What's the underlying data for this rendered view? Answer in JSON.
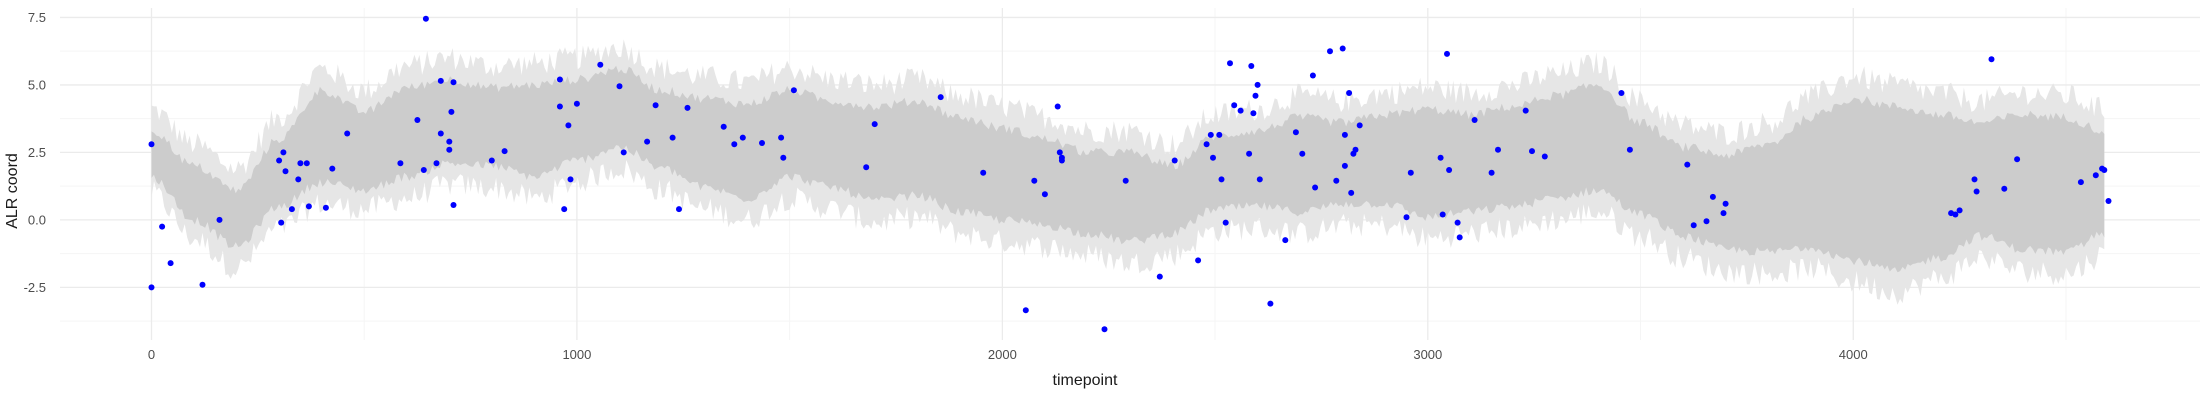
{
  "chart_data": {
    "type": "scatter",
    "title": "",
    "xlabel": "timepoint",
    "ylabel": "ALR coord",
    "xlim": [
      -215,
      4815
    ],
    "ylim": [
      -4.45,
      7.85
    ],
    "x_ticks": [
      0,
      1000,
      2000,
      3000,
      4000
    ],
    "x_tick_labels": [
      "0",
      "1000",
      "2000",
      "3000",
      "4000"
    ],
    "y_ticks": [
      -2.5,
      0.0,
      2.5,
      5.0,
      7.5
    ],
    "y_tick_labels": [
      "-2.5",
      "0.0",
      "2.5",
      "5.0",
      "7.5"
    ],
    "grid": true,
    "legend": "none",
    "colors": {
      "points": "#0000ff",
      "band_inner": "#cccccc",
      "band_outer": "#e6e6e6",
      "grid_major": "#ebebeb",
      "grid_minor": "#f5f5f5",
      "background": "#ffffff"
    },
    "band": {
      "x_start": 0,
      "x_end": 4590,
      "description_series": "posterior_interval",
      "x": [
        0,
        100,
        200,
        300,
        400,
        500,
        600,
        700,
        800,
        900,
        1000,
        1100,
        1200,
        1300,
        1400,
        1500,
        1600,
        1700,
        1800,
        1900,
        2000,
        2100,
        2200,
        2300,
        2400,
        2500,
        2600,
        2700,
        2800,
        2900,
        3000,
        3100,
        3200,
        3300,
        3400,
        3500,
        3600,
        3700,
        3800,
        3900,
        4000,
        4100,
        4200,
        4300,
        4400,
        4500,
        4590
      ],
      "inner_lower": [
        1.6,
        0.0,
        -1.0,
        0.5,
        1.4,
        1.1,
        1.6,
        2.1,
        2.0,
        1.6,
        2.2,
        2.7,
        1.9,
        1.2,
        0.8,
        1.6,
        1.2,
        0.7,
        0.9,
        0.3,
        0.0,
        -0.2,
        -0.5,
        -0.8,
        -0.5,
        0.4,
        0.5,
        0.3,
        0.6,
        0.6,
        0.1,
        0.3,
        0.5,
        0.8,
        1.1,
        0.2,
        -0.6,
        -1.1,
        -1.2,
        -1.0,
        -1.5,
        -1.9,
        -1.4,
        -0.6,
        -1.1,
        -1.2,
        -0.5
      ],
      "inner_upper": [
        3.3,
        2.0,
        1.1,
        3.0,
        4.8,
        4.0,
        4.9,
        5.2,
        4.9,
        5.0,
        5.2,
        5.6,
        4.8,
        4.5,
        4.3,
        4.8,
        4.4,
        4.2,
        4.4,
        3.8,
        3.4,
        3.0,
        2.5,
        2.5,
        2.0,
        3.1,
        3.3,
        3.8,
        3.6,
        3.9,
        4.1,
        3.9,
        4.2,
        4.6,
        5.0,
        3.6,
        2.7,
        2.4,
        2.8,
        3.8,
        4.5,
        4.2,
        3.9,
        3.6,
        3.9,
        3.8,
        3.3
      ],
      "outer_lower": [
        1.0,
        -0.7,
        -1.8,
        -0.3,
        0.6,
        0.4,
        0.8,
        1.3,
        1.2,
        0.8,
        1.4,
        1.9,
        1.1,
        0.4,
        0.0,
        0.8,
        0.4,
        -0.1,
        0.1,
        -0.5,
        -0.8,
        -1.0,
        -1.3,
        -1.6,
        -1.3,
        -0.4,
        -0.3,
        -0.5,
        -0.2,
        -0.2,
        -0.7,
        -0.5,
        -0.3,
        0.0,
        0.3,
        -0.6,
        -1.4,
        -1.9,
        -2.0,
        -1.8,
        -2.3,
        -2.7,
        -2.2,
        -1.4,
        -1.9,
        -2.0,
        -1.3
      ],
      "outer_upper": [
        4.1,
        2.8,
        1.9,
        3.8,
        5.6,
        4.8,
        5.7,
        6.0,
        5.7,
        5.8,
        6.0,
        6.4,
        5.6,
        5.3,
        5.1,
        5.6,
        5.2,
        5.0,
        5.2,
        4.6,
        4.2,
        3.8,
        3.3,
        3.3,
        2.8,
        3.9,
        4.1,
        4.6,
        4.4,
        4.7,
        4.9,
        4.7,
        5.0,
        5.4,
        5.8,
        4.4,
        3.5,
        3.2,
        3.6,
        4.6,
        5.3,
        5.0,
        4.7,
        4.4,
        4.7,
        4.6,
        4.1
      ]
    },
    "series": [
      {
        "points": [
          [
            0,
            2.8
          ],
          [
            0,
            -2.5
          ],
          [
            25,
            -0.25
          ],
          [
            45,
            -1.6
          ],
          [
            120,
            -2.4
          ],
          [
            160,
            0.0
          ],
          [
            300,
            2.2
          ],
          [
            305,
            -0.1
          ],
          [
            310,
            2.5
          ],
          [
            315,
            1.8
          ],
          [
            330,
            0.4
          ],
          [
            345,
            1.5
          ],
          [
            350,
            2.1
          ],
          [
            365,
            2.1
          ],
          [
            370,
            0.5
          ],
          [
            410,
            0.45
          ],
          [
            425,
            1.9
          ],
          [
            460,
            3.2
          ],
          [
            585,
            2.1
          ],
          [
            625,
            3.7
          ],
          [
            640,
            1.85
          ],
          [
            645,
            7.45
          ],
          [
            670,
            2.1
          ],
          [
            680,
            3.2
          ],
          [
            680,
            5.15
          ],
          [
            700,
            2.9
          ],
          [
            700,
            2.6
          ],
          [
            705,
            4.0
          ],
          [
            710,
            5.1
          ],
          [
            710,
            0.55
          ],
          [
            800,
            2.2
          ],
          [
            830,
            2.55
          ],
          [
            960,
            5.2
          ],
          [
            960,
            4.2
          ],
          [
            970,
            0.4
          ],
          [
            980,
            3.5
          ],
          [
            985,
            1.5
          ],
          [
            1000,
            4.3
          ],
          [
            1055,
            5.75
          ],
          [
            1100,
            4.95
          ],
          [
            1110,
            2.5
          ],
          [
            1165,
            2.9
          ],
          [
            1185,
            4.25
          ],
          [
            1225,
            3.05
          ],
          [
            1240,
            0.4
          ],
          [
            1260,
            4.15
          ],
          [
            1345,
            3.45
          ],
          [
            1370,
            2.8
          ],
          [
            1390,
            3.05
          ],
          [
            1435,
            2.85
          ],
          [
            1480,
            3.05
          ],
          [
            1485,
            2.3
          ],
          [
            1510,
            4.8
          ],
          [
            1680,
            1.95
          ],
          [
            1700,
            3.55
          ],
          [
            1855,
            4.55
          ],
          [
            1955,
            1.75
          ],
          [
            2055,
            -3.35
          ],
          [
            2075,
            1.45
          ],
          [
            2100,
            0.95
          ],
          [
            2130,
            4.2
          ],
          [
            2135,
            2.5
          ],
          [
            2140,
            2.3
          ],
          [
            2140,
            2.2
          ],
          [
            2240,
            -4.05
          ],
          [
            2290,
            1.45
          ],
          [
            2370,
            -2.1
          ],
          [
            2405,
            2.2
          ],
          [
            2460,
            -1.5
          ],
          [
            2480,
            2.8
          ],
          [
            2490,
            3.15
          ],
          [
            2495,
            2.3
          ],
          [
            2510,
            3.15
          ],
          [
            2515,
            1.5
          ],
          [
            2525,
            -0.1
          ],
          [
            2535,
            5.8
          ],
          [
            2545,
            4.25
          ],
          [
            2560,
            4.05
          ],
          [
            2580,
            2.45
          ],
          [
            2585,
            5.7
          ],
          [
            2590,
            3.95
          ],
          [
            2595,
            4.6
          ],
          [
            2600,
            5.0
          ],
          [
            2605,
            1.5
          ],
          [
            2630,
            -3.1
          ],
          [
            2665,
            -0.75
          ],
          [
            2690,
            3.25
          ],
          [
            2705,
            2.45
          ],
          [
            2730,
            5.35
          ],
          [
            2735,
            1.2
          ],
          [
            2770,
            6.25
          ],
          [
            2785,
            1.45
          ],
          [
            2800,
            6.35
          ],
          [
            2805,
            2.0
          ],
          [
            2805,
            3.15
          ],
          [
            2815,
            4.7
          ],
          [
            2820,
            1.0
          ],
          [
            2825,
            2.45
          ],
          [
            2830,
            2.6
          ],
          [
            2840,
            3.5
          ],
          [
            2950,
            0.1
          ],
          [
            2960,
            1.75
          ],
          [
            3030,
            2.3
          ],
          [
            3035,
            0.2
          ],
          [
            3045,
            6.15
          ],
          [
            3050,
            1.85
          ],
          [
            3070,
            -0.1
          ],
          [
            3075,
            -0.65
          ],
          [
            3110,
            3.7
          ],
          [
            3150,
            1.75
          ],
          [
            3165,
            2.6
          ],
          [
            3230,
            4.05
          ],
          [
            3245,
            2.55
          ],
          [
            3275,
            2.35
          ],
          [
            3455,
            4.7
          ],
          [
            3475,
            2.6
          ],
          [
            3610,
            2.05
          ],
          [
            3625,
            -0.2
          ],
          [
            3655,
            -0.05
          ],
          [
            3670,
            0.85
          ],
          [
            3695,
            0.25
          ],
          [
            3700,
            0.6
          ],
          [
            4230,
            0.25
          ],
          [
            4240,
            0.2
          ],
          [
            4250,
            0.35
          ],
          [
            4285,
            1.5
          ],
          [
            4290,
            1.05
          ],
          [
            4325,
            5.95
          ],
          [
            4355,
            1.15
          ],
          [
            4385,
            2.25
          ],
          [
            4535,
            1.4
          ],
          [
            4570,
            1.65
          ],
          [
            4585,
            1.9
          ],
          [
            4590,
            1.85
          ],
          [
            4600,
            0.7
          ]
        ]
      }
    ]
  }
}
